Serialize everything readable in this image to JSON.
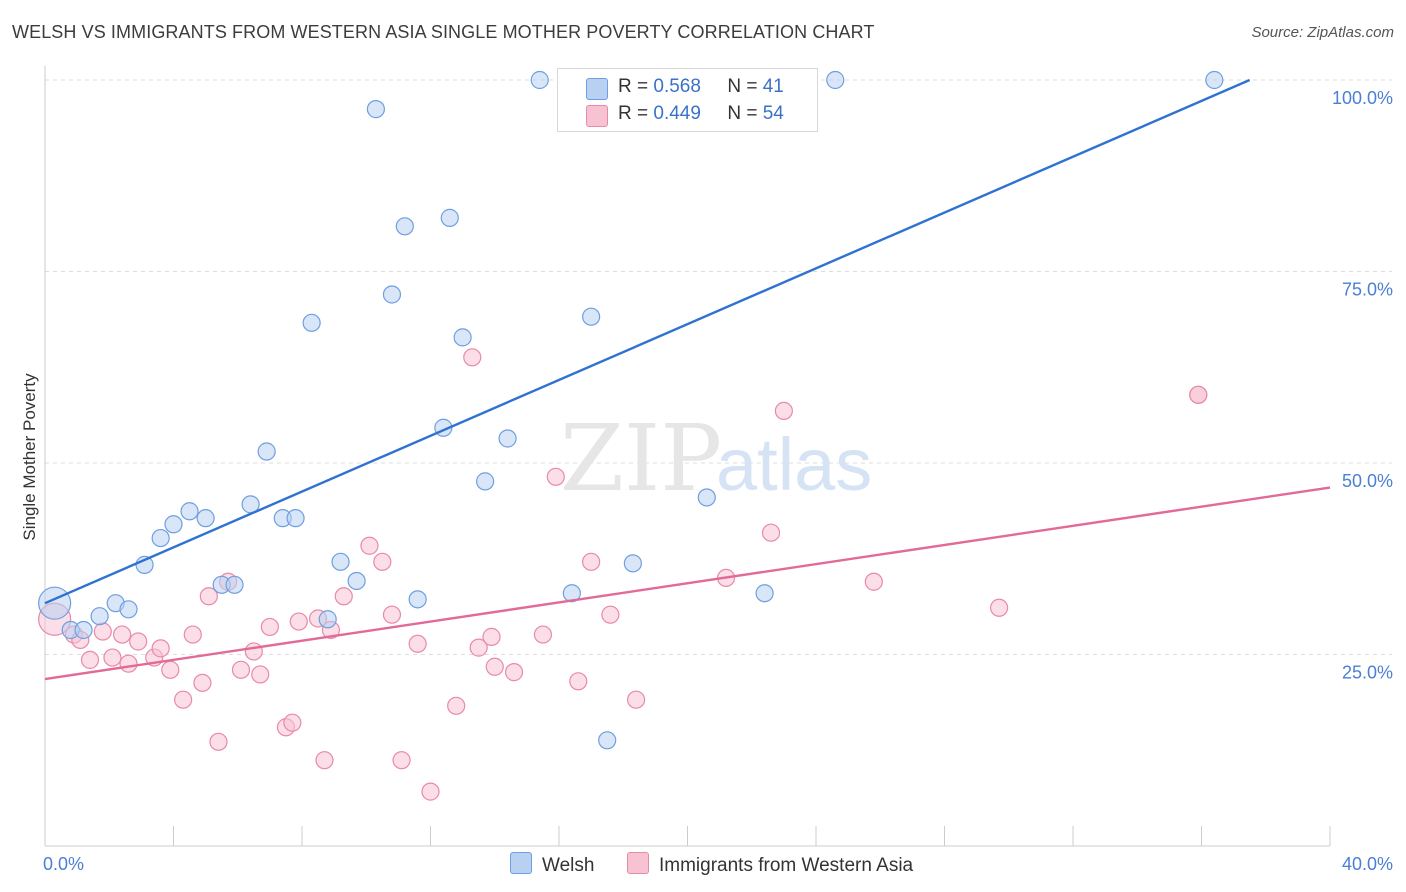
{
  "title": "WELSH VS IMMIGRANTS FROM WESTERN ASIA SINGLE MOTHER POVERTY CORRELATION CHART",
  "source": "Source: ZipAtlas.com",
  "watermark": {
    "zip": "ZIP",
    "atlas": "atlas"
  },
  "legend": {
    "r_label": "R =",
    "n_label": "N =",
    "rows": [
      {
        "name": "Welsh",
        "r": "0.568",
        "n": "41"
      },
      {
        "name": "Immigrants from Western Asia",
        "r": "0.449",
        "n": "54"
      }
    ]
  },
  "colors": {
    "welsh_fill": "#b8d1f3",
    "welsh_stroke": "#6f9fe0",
    "welsh_line": "#2f72d1",
    "imm_fill": "#f7c3d3",
    "imm_stroke": "#e88aa8",
    "imm_line": "#e26a98",
    "axis_label": "#4a7fd4",
    "grid": "#dddddd"
  },
  "chart_data": {
    "type": "scatter",
    "title": "WELSH VS IMMIGRANTS FROM WESTERN ASIA SINGLE MOTHER POVERTY CORRELATION CHART",
    "xlabel": "",
    "ylabel": "Single Mother Poverty",
    "xlim": [
      0,
      40
    ],
    "ylim": [
      0,
      100
    ],
    "x_tick_labels": [
      "0.0%",
      "40.0%"
    ],
    "y_tick_values": [
      25,
      50,
      75,
      100
    ],
    "y_tick_labels": [
      "25.0%",
      "50.0%",
      "75.0%",
      "100.0%"
    ],
    "grid": true,
    "legend_position": "top-center",
    "series": [
      {
        "name": "Welsh",
        "trend": {
          "x": [
            0,
            37.5
          ],
          "y": [
            31.7,
            100
          ]
        },
        "points": [
          {
            "x": 0.3,
            "y": 31.7,
            "big": true
          },
          {
            "x": 0.8,
            "y": 28.2
          },
          {
            "x": 1.2,
            "y": 28.2
          },
          {
            "x": 1.7,
            "y": 30
          },
          {
            "x": 2.2,
            "y": 31.7
          },
          {
            "x": 2.6,
            "y": 30.9
          },
          {
            "x": 3.1,
            "y": 36.7
          },
          {
            "x": 3.6,
            "y": 40.2
          },
          {
            "x": 4.0,
            "y": 42.0
          },
          {
            "x": 4.5,
            "y": 43.7
          },
          {
            "x": 5.0,
            "y": 42.8
          },
          {
            "x": 5.5,
            "y": 34.1
          },
          {
            "x": 5.9,
            "y": 34.1
          },
          {
            "x": 6.4,
            "y": 44.6
          },
          {
            "x": 6.9,
            "y": 51.5
          },
          {
            "x": 7.4,
            "y": 42.8
          },
          {
            "x": 7.8,
            "y": 42.8
          },
          {
            "x": 8.3,
            "y": 68.3
          },
          {
            "x": 8.8,
            "y": 29.6
          },
          {
            "x": 9.2,
            "y": 37.1
          },
          {
            "x": 9.7,
            "y": 34.6
          },
          {
            "x": 10.3,
            "y": 96.2
          },
          {
            "x": 10.8,
            "y": 72
          },
          {
            "x": 11.2,
            "y": 80.9
          },
          {
            "x": 11.6,
            "y": 32.2
          },
          {
            "x": 12.4,
            "y": 54.6
          },
          {
            "x": 12.6,
            "y": 82
          },
          {
            "x": 13.0,
            "y": 66.4
          },
          {
            "x": 13.7,
            "y": 47.6
          },
          {
            "x": 14.4,
            "y": 53.2
          },
          {
            "x": 15.4,
            "y": 100
          },
          {
            "x": 16.4,
            "y": 33
          },
          {
            "x": 17.0,
            "y": 69.1
          },
          {
            "x": 17.5,
            "y": 13.8
          },
          {
            "x": 18.3,
            "y": 36.9
          },
          {
            "x": 19.5,
            "y": 100
          },
          {
            "x": 20.6,
            "y": 45.5
          },
          {
            "x": 21.1,
            "y": 100
          },
          {
            "x": 22.4,
            "y": 33
          },
          {
            "x": 24.6,
            "y": 100
          },
          {
            "x": 36.4,
            "y": 100
          }
        ]
      },
      {
        "name": "Immigrants from Western Asia",
        "trend": {
          "x": [
            0,
            40
          ],
          "y": [
            21.8,
            46.8
          ]
        },
        "points": [
          {
            "x": 0.3,
            "y": 29.6,
            "big": true
          },
          {
            "x": 0.9,
            "y": 27.6
          },
          {
            "x": 1.1,
            "y": 26.9
          },
          {
            "x": 1.4,
            "y": 24.3
          },
          {
            "x": 1.8,
            "y": 28
          },
          {
            "x": 2.1,
            "y": 24.6
          },
          {
            "x": 2.4,
            "y": 27.6
          },
          {
            "x": 2.6,
            "y": 23.8
          },
          {
            "x": 2.9,
            "y": 26.7
          },
          {
            "x": 3.4,
            "y": 24.6
          },
          {
            "x": 3.6,
            "y": 25.8
          },
          {
            "x": 3.9,
            "y": 23
          },
          {
            "x": 4.3,
            "y": 19.1
          },
          {
            "x": 4.6,
            "y": 27.6
          },
          {
            "x": 4.9,
            "y": 21.3
          },
          {
            "x": 5.1,
            "y": 32.6
          },
          {
            "x": 5.4,
            "y": 13.6
          },
          {
            "x": 5.7,
            "y": 34.5
          },
          {
            "x": 6.1,
            "y": 23
          },
          {
            "x": 6.5,
            "y": 25.4
          },
          {
            "x": 6.7,
            "y": 22.4
          },
          {
            "x": 7.0,
            "y": 28.6
          },
          {
            "x": 7.5,
            "y": 15.5
          },
          {
            "x": 7.7,
            "y": 16.1
          },
          {
            "x": 7.9,
            "y": 29.3
          },
          {
            "x": 8.5,
            "y": 29.7
          },
          {
            "x": 8.7,
            "y": 11.2
          },
          {
            "x": 8.9,
            "y": 28.2
          },
          {
            "x": 9.3,
            "y": 32.6
          },
          {
            "x": 10.1,
            "y": 39.2
          },
          {
            "x": 10.5,
            "y": 37.1
          },
          {
            "x": 10.8,
            "y": 30.2
          },
          {
            "x": 11.1,
            "y": 11.2
          },
          {
            "x": 11.6,
            "y": 26.4
          },
          {
            "x": 12.0,
            "y": 7.1
          },
          {
            "x": 12.8,
            "y": 18.3
          },
          {
            "x": 13.3,
            "y": 63.8
          },
          {
            "x": 13.5,
            "y": 25.9
          },
          {
            "x": 13.9,
            "y": 27.3
          },
          {
            "x": 14.0,
            "y": 23.4
          },
          {
            "x": 14.6,
            "y": 22.7
          },
          {
            "x": 15.5,
            "y": 27.6
          },
          {
            "x": 15.9,
            "y": 48.2
          },
          {
            "x": 16.6,
            "y": 21.5
          },
          {
            "x": 17.0,
            "y": 37.1
          },
          {
            "x": 17.6,
            "y": 30.2
          },
          {
            "x": 18.4,
            "y": 19.1
          },
          {
            "x": 21.2,
            "y": 35
          },
          {
            "x": 22.6,
            "y": 40.9
          },
          {
            "x": 23.0,
            "y": 56.8
          },
          {
            "x": 25.8,
            "y": 34.5
          },
          {
            "x": 29.7,
            "y": 31.1
          },
          {
            "x": 35.9,
            "y": 58.9
          },
          {
            "x": 35.9,
            "y": 58.9
          }
        ]
      }
    ]
  }
}
